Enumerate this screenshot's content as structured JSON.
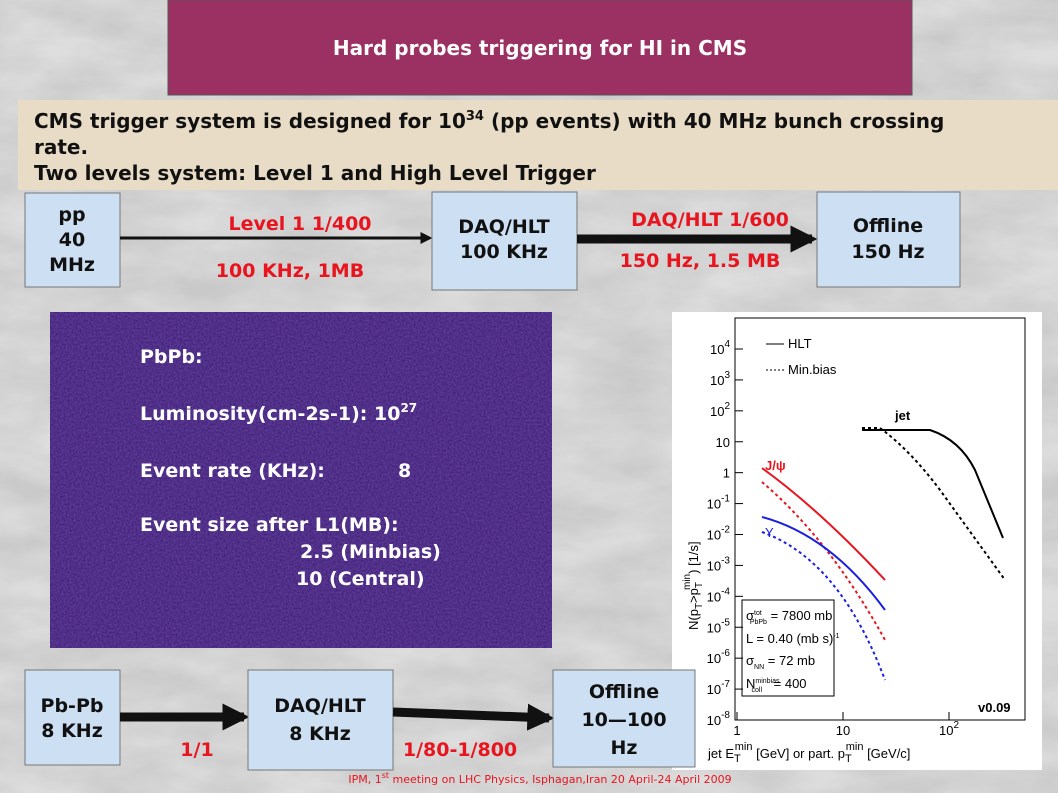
{
  "title": "Hard probes triggering for HI in CMS",
  "intro": {
    "line1_before": "CMS trigger system is designed for 10",
    "line1_sup": "34",
    "line1_after": " (pp events) with 40 MHz bunch crossing",
    "line1_wrap": "rate.",
    "line2": "Two levels system: Level 1 and High Level Trigger"
  },
  "pp_chain": {
    "source": [
      "pp",
      "40",
      "MHz"
    ],
    "level1": "Level 1 1/400",
    "level1_rate": "100 KHz, 1MB",
    "daq": [
      "DAQ/HLT",
      "100 KHz"
    ],
    "hlt": "DAQ/HLT 1/600",
    "hlt_rate": "150 Hz, 1.5 MB",
    "offline": [
      "Offline",
      "150 Hz"
    ]
  },
  "pbpb_info": {
    "heading": "PbPb:",
    "luminosity_label": "Luminosity(cm-2s-1): ",
    "luminosity_base": "10",
    "luminosity_exp": "27",
    "event_rate_label": "Event rate (KHz):",
    "event_rate": "8",
    "event_size_label": "Event size after L1(MB):",
    "minbias": "2.5 (Minbias)",
    "central": "10 (Central)"
  },
  "plot": {
    "yticks": [
      {
        "base": "10",
        "exp": "4"
      },
      {
        "base": "10",
        "exp": "3"
      },
      {
        "base": "10",
        "exp": "2"
      },
      {
        "base": "10"
      },
      {
        "base": "1"
      },
      {
        "base": "10",
        "exp": "-1"
      },
      {
        "base": "10",
        "exp": "-2"
      },
      {
        "base": "10",
        "exp": "-3"
      },
      {
        "base": "10",
        "exp": "-4"
      },
      {
        "base": "10",
        "exp": "-5"
      },
      {
        "base": "10",
        "exp": "-6"
      },
      {
        "base": "10",
        "exp": "-7"
      },
      {
        "base": "10",
        "exp": "-8"
      }
    ],
    "xticks": [
      {
        "base": "1"
      },
      {
        "base": "10"
      },
      {
        "base": "10",
        "exp": "2"
      }
    ],
    "legend": [
      "HLT",
      "Min.bias"
    ],
    "labels": {
      "jet": "jet",
      "jpsi": "J/ψ",
      "upsilon": "Υ",
      "version": "v0.09"
    },
    "y_label": [
      "N(p",
      "T",
      ">p",
      "T",
      "min",
      ") [1/s]"
    ],
    "x_label": [
      "jet E",
      "T",
      "min",
      " [GeV] or part. p",
      "T",
      "min",
      " [GeV/c]"
    ],
    "info": [
      [
        "σ",
        "tot",
        "PbPb",
        " = 7800 mb"
      ],
      [
        "L = 0.40 (mb s)",
        "-1"
      ],
      [
        "σ",
        "NN",
        " = 72 mb"
      ],
      [
        "N",
        "minbias",
        "coll",
        " = 400"
      ]
    ]
  },
  "pbpb_chain": {
    "source": [
      "Pb-Pb",
      "8 KHz"
    ],
    "daq": [
      "DAQ/HLT",
      "8 KHz"
    ],
    "offline": [
      "Offline",
      "10—100",
      "Hz"
    ],
    "level1": "1/1",
    "hlt": "1/80-1/800"
  },
  "footer": {
    "before": "IPM, 1",
    "sup": "st",
    "after": " meeting on LHC Physics, Isphagan,Iran 20 April-24 April 2009"
  }
}
